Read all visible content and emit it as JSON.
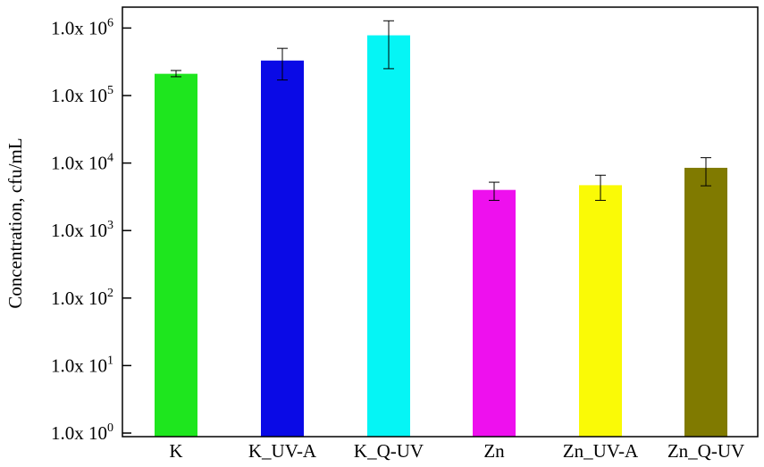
{
  "chart_data": {
    "type": "bar",
    "ylabel": "Concentration, cfu/mL",
    "xlabel": "",
    "yscale": "log",
    "ylim": [
      1,
      2000000
    ],
    "grid": false,
    "legend": "none",
    "yticks": [
      {
        "mantissa": "1.0x 10",
        "exp": "0",
        "value": 1
      },
      {
        "mantissa": "1.0x 10",
        "exp": "1",
        "value": 10
      },
      {
        "mantissa": "1.0x 10",
        "exp": "2",
        "value": 100
      },
      {
        "mantissa": "1.0x 10",
        "exp": "3",
        "value": 1000
      },
      {
        "mantissa": "1.0x 10",
        "exp": "4",
        "value": 10000
      },
      {
        "mantissa": "1.0x 10",
        "exp": "5",
        "value": 100000
      },
      {
        "mantissa": "1.0x 10",
        "exp": "6",
        "value": 1000000
      }
    ],
    "categories": [
      "K",
      "K_UV-A",
      "K_Q-UV",
      "Zn",
      "Zn_UV-A",
      "Zn_Q-UV"
    ],
    "values": [
      210000,
      330000,
      780000,
      4000,
      4700,
      8500
    ],
    "error_low": [
      190000,
      170000,
      250000,
      2800,
      2800,
      4600
    ],
    "error_high": [
      235000,
      500000,
      1280000,
      5200,
      6600,
      12000
    ],
    "colors": [
      "#1ee61e",
      "#0a0ae6",
      "#05f5f5",
      "#ee10ee",
      "#fafa06",
      "#807a00"
    ]
  }
}
